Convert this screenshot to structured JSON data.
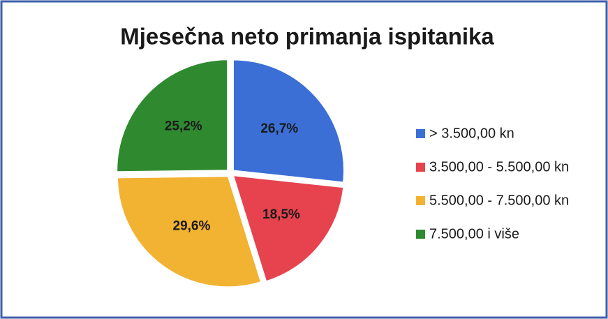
{
  "chart_data": {
    "type": "pie",
    "title": "Mjesečna neto primanja ispitanika",
    "categories": [
      "> 3.500,00 kn",
      "3.500,00 - 5.500,00 kn",
      "5.500,00 - 7.500,00 kn",
      "7.500,00 i više"
    ],
    "values": [
      26.7,
      18.5,
      29.6,
      25.2
    ],
    "value_labels": [
      "26,7%",
      "18,5%",
      "29,6%",
      "25,2%"
    ],
    "colors": [
      "#3b6fd6",
      "#e6434f",
      "#f2b232",
      "#2f8a2f"
    ],
    "legend": "right"
  }
}
